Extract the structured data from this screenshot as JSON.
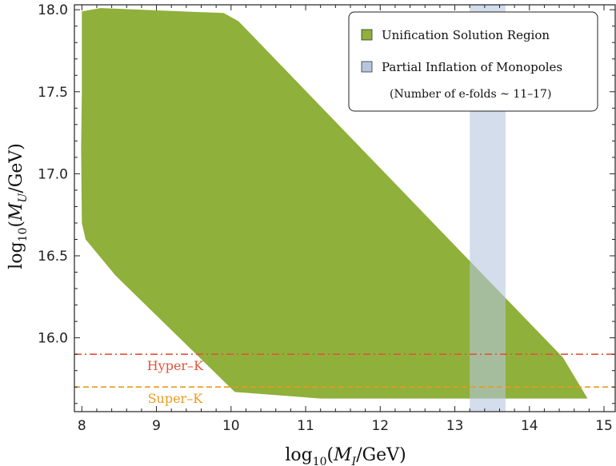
{
  "chart_data": {
    "type": "area",
    "xlabel": {
      "prefix": "log",
      "sub": "10",
      "open": "(",
      "var": "M",
      "varsub": "I",
      "unit": "/GeV)"
    },
    "ylabel": {
      "prefix": "log",
      "sub": "10",
      "open": "(",
      "var": "M",
      "varsub": "U",
      "unit": "/GeV)"
    },
    "xlim": [
      7.9,
      15.15
    ],
    "ylim": [
      15.55,
      18.03
    ],
    "x_ticks": [
      8,
      9,
      10,
      11,
      12,
      13,
      14,
      15
    ],
    "x_tick_labels": [
      "8",
      "9",
      "10",
      "11",
      "12",
      "13",
      "14",
      "15"
    ],
    "y_ticks": [
      16.0,
      16.5,
      17.0,
      17.5,
      18.0
    ],
    "y_tick_labels": [
      "16.0",
      "16.5",
      "17.0",
      "17.5",
      "18.0"
    ],
    "grid": false,
    "legend_placement": "top-right",
    "colors": {
      "region": "#8fb03a",
      "band": "#b6c6e0",
      "hyperk": "#e0553a",
      "superk": "#e89a1c"
    },
    "series": [
      {
        "name": "Unification Solution Region",
        "kind": "polygon",
        "points": [
          [
            8.0,
            17.99
          ],
          [
            8.25,
            18.01
          ],
          [
            9.9,
            17.98
          ],
          [
            10.1,
            17.93
          ],
          [
            14.45,
            15.88
          ],
          [
            14.78,
            15.63
          ],
          [
            11.2,
            15.63
          ],
          [
            10.05,
            15.67
          ],
          [
            8.45,
            16.38
          ],
          [
            8.05,
            16.6
          ],
          [
            8.0,
            16.7
          ],
          [
            7.99,
            17.15
          ],
          [
            8.0,
            17.5
          ]
        ]
      },
      {
        "name": "Partial Inflation of Monopoles",
        "kind": "band",
        "x_range": [
          13.2,
          13.68
        ]
      }
    ],
    "legend_note": "(Number of e-folds ~ 11–17)",
    "reference_lines": [
      {
        "label": "Hyper–K",
        "y": 15.9,
        "style": "dash-dot",
        "color": "#e0553a"
      },
      {
        "label": "Super–K",
        "y": 15.7,
        "style": "dashed",
        "color": "#e89a1c"
      }
    ]
  }
}
